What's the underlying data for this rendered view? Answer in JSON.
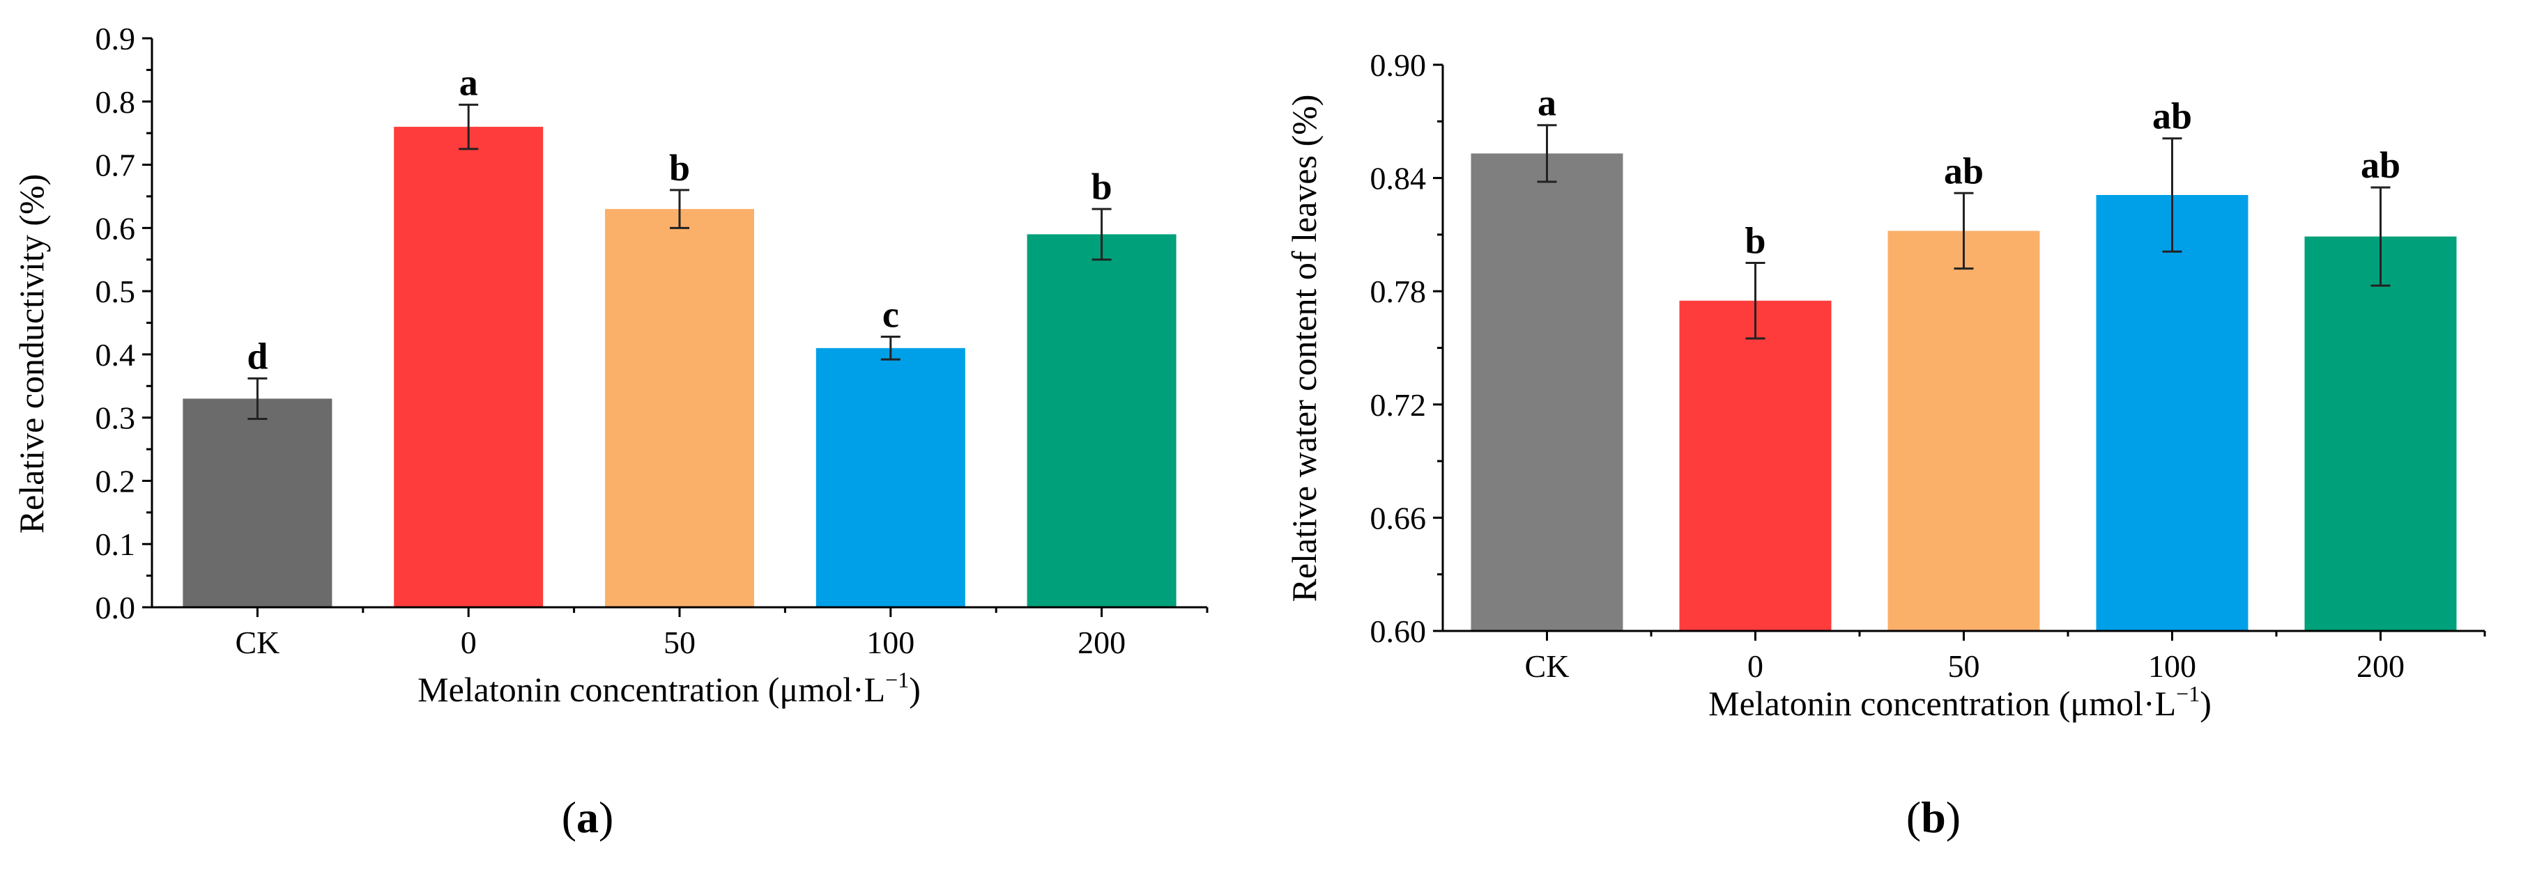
{
  "figure": {
    "panels": [
      "a",
      "b"
    ]
  },
  "chart_data": [
    {
      "type": "bar",
      "panel": "a",
      "panel_label": "(a)",
      "categories": [
        "CK",
        "0",
        "50",
        "100",
        "200"
      ],
      "values": [
        0.33,
        0.76,
        0.63,
        0.41,
        0.59
      ],
      "errors": [
        0.032,
        0.035,
        0.03,
        0.018,
        0.04
      ],
      "significance": [
        "d",
        "a",
        "b",
        "c",
        "b"
      ],
      "colors": [
        "#6b6b6b",
        "#ff3c3c",
        "#fbb06a",
        "#00a0e8",
        "#00a07a"
      ],
      "ylim": [
        0.0,
        0.9
      ],
      "yticks": [
        "0.0",
        "0.1",
        "0.2",
        "0.3",
        "0.4",
        "0.5",
        "0.6",
        "0.7",
        "0.8",
        "0.9"
      ],
      "ylabel": "Relative conductivity (%)",
      "xlabel": "Melatonin concentration (μmol·L",
      "xlabel_superscript": "−1",
      "xlabel_suffix": ")"
    },
    {
      "type": "bar",
      "panel": "b",
      "panel_label": "(b)",
      "categories": [
        "CK",
        "0",
        "50",
        "100",
        "200"
      ],
      "values": [
        0.853,
        0.775,
        0.812,
        0.831,
        0.809
      ],
      "errors": [
        0.015,
        0.02,
        0.02,
        0.03,
        0.026
      ],
      "significance": [
        "a",
        "b",
        "ab",
        "ab",
        "ab"
      ],
      "colors": [
        "#7f7f7f",
        "#ff3c3c",
        "#fbb06a",
        "#00a0e8",
        "#00a07a"
      ],
      "ylim": [
        0.6,
        0.9
      ],
      "yticks": [
        "0.60",
        "0.66",
        "0.72",
        "0.78",
        "0.84",
        "0.90"
      ],
      "ylabel": "Relative water content of leaves (%)",
      "xlabel": "Melatonin concentration (μmol·L",
      "xlabel_superscript": "−1",
      "xlabel_suffix": ")"
    }
  ]
}
